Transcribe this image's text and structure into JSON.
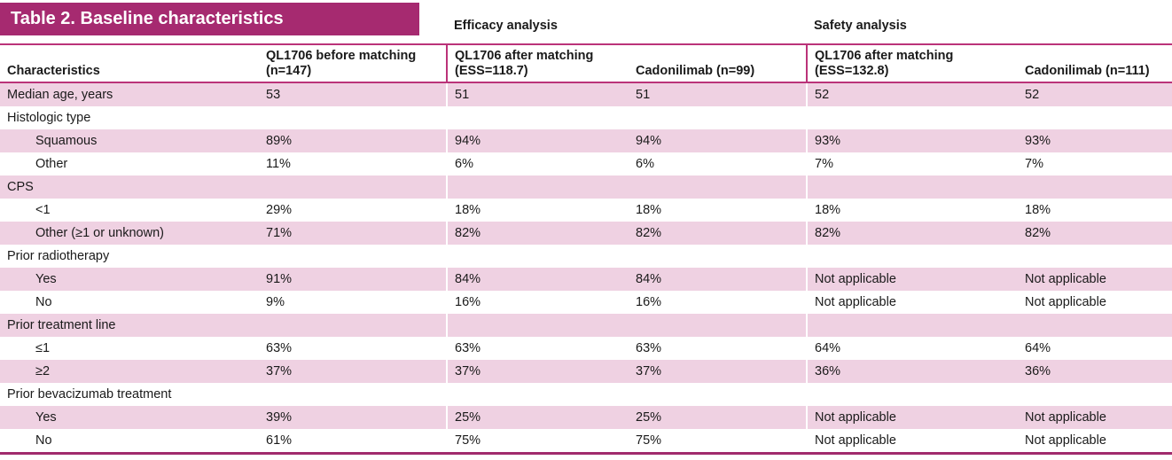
{
  "title": "Table 2. Baseline characteristics",
  "groups": [
    {
      "label": "Efficacy analysis"
    },
    {
      "label": "Safety analysis"
    }
  ],
  "columns": [
    "Characteristics",
    "QL1706 before matching (n=147)",
    "QL1706 after matching (ESS=118.7)",
    "Cadonilimab (n=99)",
    "QL1706 after matching (ESS=132.8)",
    "Cadonilimab (n=111)"
  ],
  "rows": [
    {
      "label": "Median age, years",
      "indent": false,
      "values": [
        "53",
        "51",
        "51",
        "52",
        "52"
      ]
    },
    {
      "label": "Histologic type",
      "indent": false,
      "values": [
        "",
        "",
        "",
        "",
        ""
      ]
    },
    {
      "label": "Squamous",
      "indent": true,
      "values": [
        "89%",
        "94%",
        "94%",
        "93%",
        "93%"
      ]
    },
    {
      "label": "Other",
      "indent": true,
      "values": [
        "11%",
        "6%",
        "6%",
        "7%",
        "7%"
      ]
    },
    {
      "label": "CPS",
      "indent": false,
      "values": [
        "",
        "",
        "",
        "",
        ""
      ]
    },
    {
      "label": "<1",
      "indent": true,
      "values": [
        "29%",
        "18%",
        "18%",
        "18%",
        "18%"
      ]
    },
    {
      "label": "Other (≥1 or unknown)",
      "indent": true,
      "values": [
        "71%",
        "82%",
        "82%",
        "82%",
        "82%"
      ]
    },
    {
      "label": "Prior radiotherapy",
      "indent": false,
      "values": [
        "",
        "",
        "",
        "",
        ""
      ]
    },
    {
      "label": "Yes",
      "indent": true,
      "values": [
        "91%",
        "84%",
        "84%",
        "Not applicable",
        "Not applicable"
      ]
    },
    {
      "label": "No",
      "indent": true,
      "values": [
        "9%",
        "16%",
        "16%",
        "Not applicable",
        "Not applicable"
      ]
    },
    {
      "label": "Prior treatment line",
      "indent": false,
      "values": [
        "",
        "",
        "",
        "",
        ""
      ]
    },
    {
      "label": "≤1",
      "indent": true,
      "values": [
        "63%",
        "63%",
        "63%",
        "64%",
        "64%"
      ]
    },
    {
      "label": "≥2",
      "indent": true,
      "values": [
        "37%",
        "37%",
        "37%",
        "36%",
        "36%"
      ]
    },
    {
      "label": "Prior bevacizumab treatment",
      "indent": false,
      "values": [
        "",
        "",
        "",
        "",
        ""
      ]
    },
    {
      "label": "Yes",
      "indent": true,
      "values": [
        "39%",
        "25%",
        "25%",
        "Not applicable",
        "Not applicable"
      ]
    },
    {
      "label": "No",
      "indent": true,
      "values": [
        "61%",
        "75%",
        "75%",
        "Not applicable",
        "Not applicable"
      ]
    }
  ],
  "colors": {
    "title_bar": "#a62a70",
    "rule": "#bb3379",
    "bottom_rule": "#a12b6d",
    "row_stripe": "#efd1e2"
  }
}
